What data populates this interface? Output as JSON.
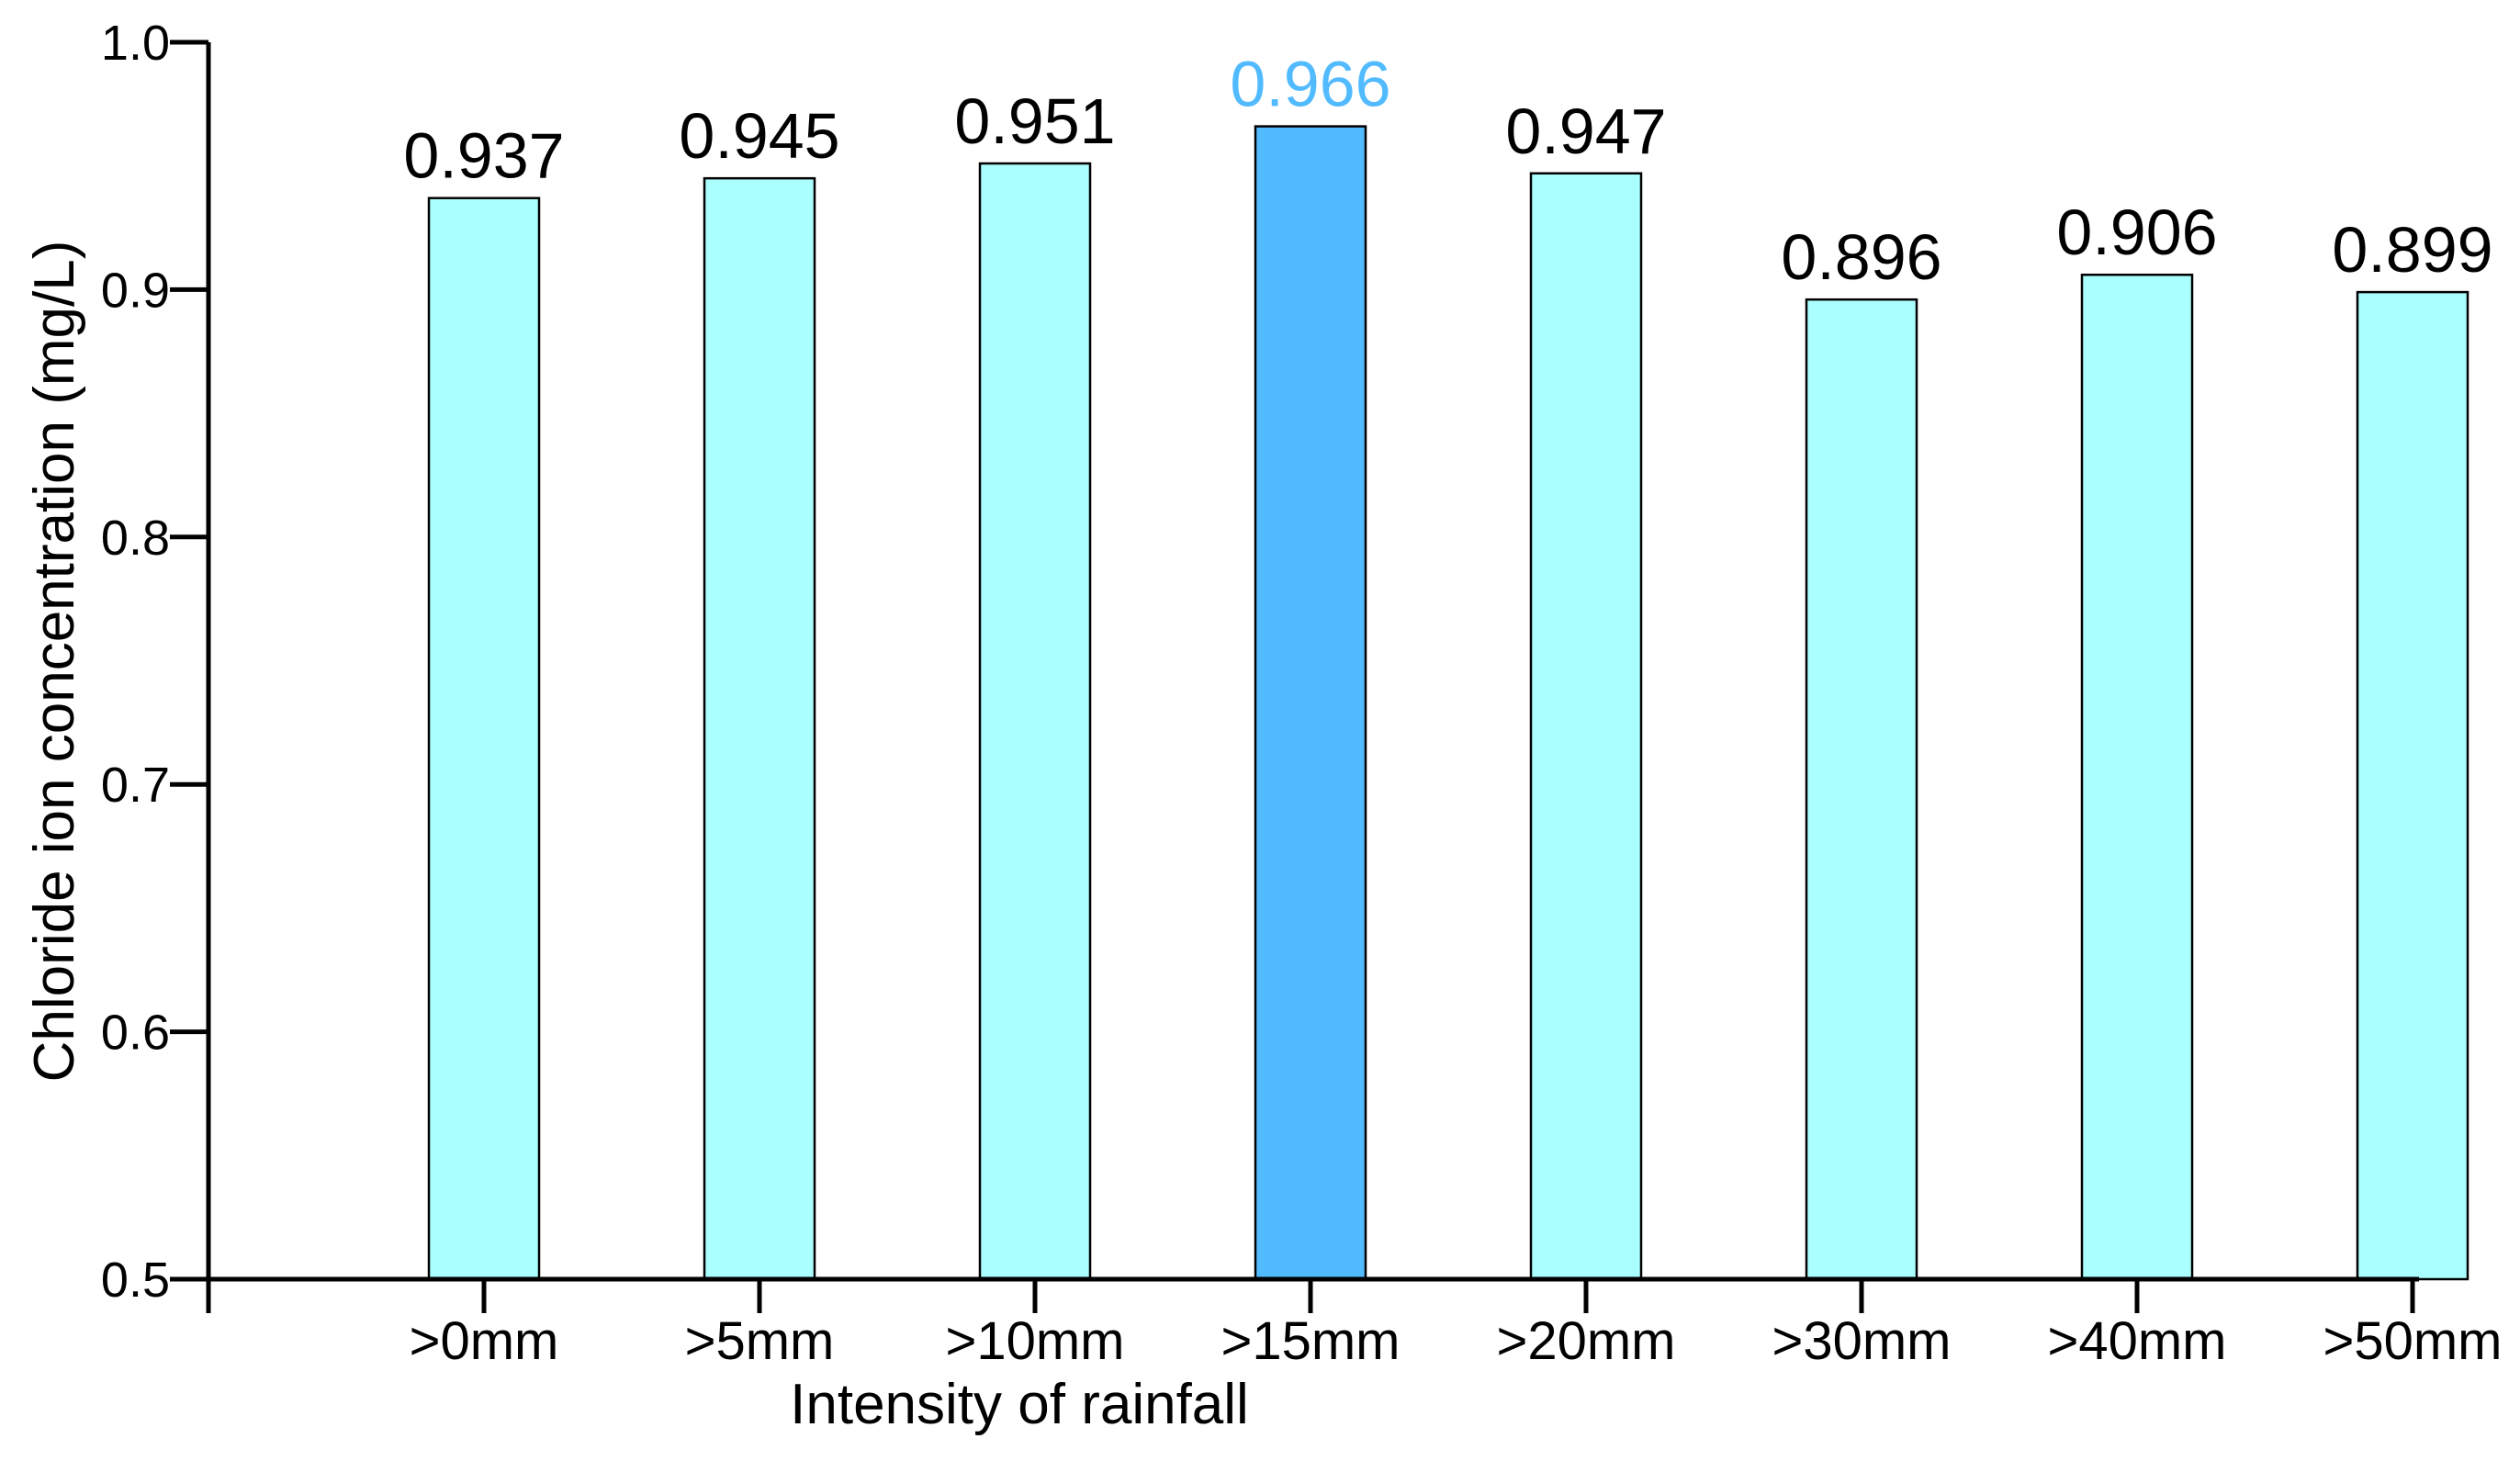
{
  "chart_data": {
    "type": "bar",
    "categories": [
      ">0mm",
      ">5mm",
      ">10mm",
      ">15mm",
      ">20mm",
      ">30mm",
      ">40mm",
      ">50mm"
    ],
    "values": [
      0.937,
      0.945,
      0.951,
      0.966,
      0.947,
      0.896,
      0.906,
      0.899
    ],
    "value_labels": [
      "0.937",
      "0.945",
      "0.951",
      "0.966",
      "0.947",
      "0.896",
      "0.906",
      "0.899"
    ],
    "highlight_index": 3,
    "xlabel": "Intensity of rainfall",
    "ylabel": "Chloride ion concentration (mg/L)",
    "ylim": [
      0.5,
      1.0
    ],
    "yticks": [
      "0.5",
      "0.6",
      "0.7",
      "0.8",
      "0.9",
      "1.0"
    ],
    "grid": false,
    "colors": {
      "bar": "#aaffff",
      "highlight_bar": "#52bbff",
      "highlight_label": "#52bbff",
      "label": "#000000"
    }
  }
}
